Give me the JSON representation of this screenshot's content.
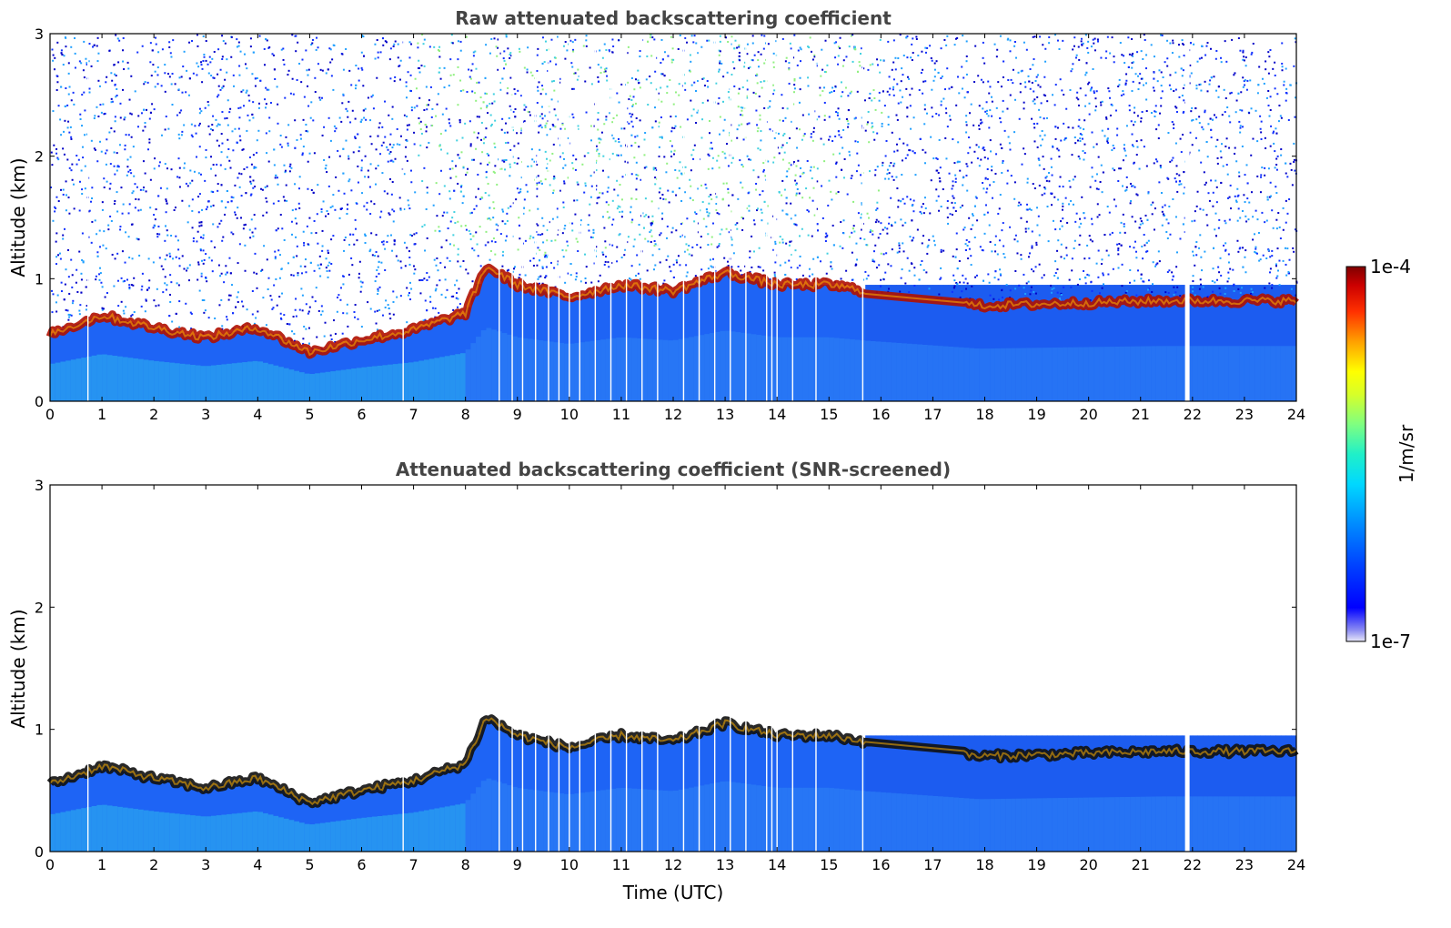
{
  "chart_data": [
    {
      "type": "heatmap",
      "title": "Raw attenuated backscattering coefficient",
      "xlabel": "",
      "ylabel": "Altitude (km)",
      "xlim": [
        0,
        24
      ],
      "ylim": [
        0,
        3
      ],
      "x_ticks": [
        "0",
        "1",
        "2",
        "3",
        "4",
        "5",
        "6",
        "7",
        "8",
        "9",
        "10",
        "11",
        "12",
        "13",
        "14",
        "15",
        "16",
        "17",
        "18",
        "19",
        "20",
        "21",
        "22",
        "23",
        "24"
      ],
      "y_ticks": [
        "0",
        "1",
        "2",
        "3"
      ],
      "boundary_layer_top_km": {
        "x": [
          0,
          1,
          2,
          3,
          4,
          5,
          6,
          7,
          8,
          8.4,
          9,
          10,
          11,
          12,
          13,
          14,
          15,
          15.7,
          17.9,
          21.4,
          23.5
        ],
        "y": [
          0.55,
          0.7,
          0.6,
          0.52,
          0.6,
          0.4,
          0.5,
          0.58,
          0.72,
          1.1,
          0.95,
          0.85,
          0.95,
          0.9,
          1.05,
          0.95,
          0.95,
          0.9,
          0.78,
          0.82,
          0.82
        ]
      },
      "noise_level": "high above ~0.8 km"
    },
    {
      "type": "heatmap",
      "title": "Attenuated backscattering coefficient (SNR-screened)",
      "xlabel": "Time (UTC)",
      "ylabel": "Altitude (km)",
      "xlim": [
        0,
        24
      ],
      "ylim": [
        0,
        3
      ],
      "x_ticks": [
        "0",
        "1",
        "2",
        "3",
        "4",
        "5",
        "6",
        "7",
        "8",
        "9",
        "10",
        "11",
        "12",
        "13",
        "14",
        "15",
        "16",
        "17",
        "18",
        "19",
        "20",
        "21",
        "22",
        "23",
        "24"
      ],
      "y_ticks": [
        "0",
        "1",
        "2",
        "3"
      ],
      "boundary_layer_top_km": {
        "x": [
          0,
          1,
          2,
          3,
          4,
          5,
          6,
          7,
          8,
          8.4,
          9,
          10,
          11,
          12,
          13,
          14,
          15,
          15.7,
          17.9,
          21.4,
          23.5
        ],
        "y": [
          0.55,
          0.7,
          0.6,
          0.52,
          0.6,
          0.4,
          0.5,
          0.58,
          0.72,
          1.1,
          0.95,
          0.85,
          0.95,
          0.9,
          1.05,
          0.95,
          0.95,
          0.9,
          0.78,
          0.82,
          0.82
        ]
      },
      "noise_level": "screened"
    }
  ],
  "colorbar": {
    "label": "1/m/sr",
    "max_label": "1e-4",
    "min_label": "1e-7",
    "scale": "log",
    "range": [
      1e-07,
      0.0001
    ],
    "colormap": "jet"
  }
}
